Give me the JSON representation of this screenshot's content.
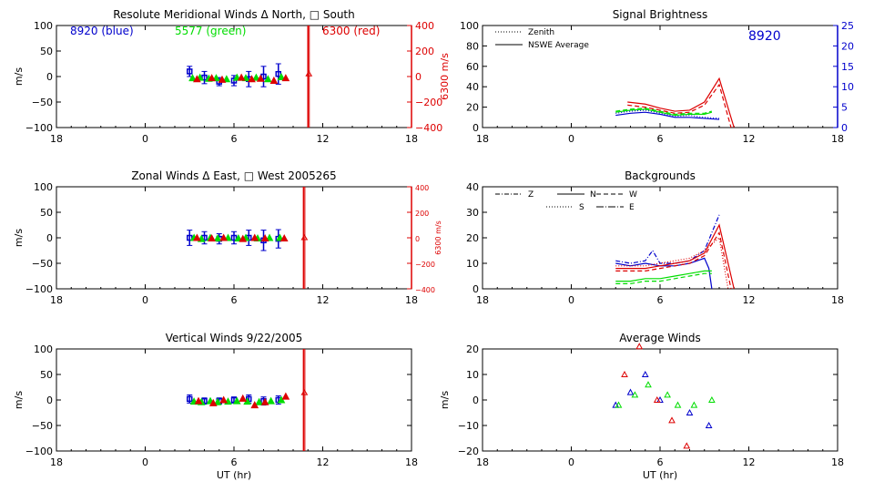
{
  "colors": {
    "blue": "#0000cc",
    "green": "#00dd00",
    "red": "#dd0000",
    "axis": "#000000"
  },
  "x_ticks": [
    "18",
    "0",
    "6",
    "12",
    "18"
  ],
  "xlabel_bottom": "UT (hr)",
  "chart_data": [
    {
      "id": "meridional",
      "type": "scatter",
      "title": "Resolute Meridional Winds Δ North, □ South",
      "ylabel": "m/s",
      "ylim": [
        -100,
        100
      ],
      "yticks": [
        "100",
        "50",
        "0",
        "−50",
        "−100"
      ],
      "xlim": [
        -6,
        18
      ],
      "right_axis": {
        "label": "6300 m/s",
        "ylim": [
          -400,
          400
        ],
        "ticks": [
          "400",
          "200",
          "0",
          "−200",
          "−400"
        ],
        "color": "#dd0000"
      },
      "annotations": [
        {
          "text": "8920 (blue)",
          "color": "#0000cc"
        },
        {
          "text": "5577 (green)",
          "color": "#00dd00"
        },
        {
          "text": "6300 (red)",
          "color": "#dd0000"
        }
      ],
      "series": [
        {
          "color": "#0000cc",
          "points": [
            [
              3.0,
              10,
              10
            ],
            [
              4.0,
              -2,
              12
            ],
            [
              5.0,
              -10,
              8
            ],
            [
              6.0,
              -8,
              10
            ],
            [
              7.0,
              -5,
              15
            ],
            [
              8.0,
              0,
              20
            ],
            [
              9.0,
              5,
              20
            ]
          ]
        },
        {
          "color": "#00dd00",
          "points": [
            [
              3.2,
              -3,
              0
            ],
            [
              3.7,
              -2,
              0
            ],
            [
              4.3,
              -4,
              0
            ],
            [
              4.8,
              -3,
              0
            ],
            [
              5.5,
              -5,
              0
            ],
            [
              6.2,
              -2,
              0
            ],
            [
              6.8,
              -3,
              0
            ],
            [
              7.5,
              -2,
              0
            ],
            [
              8.3,
              -5,
              0
            ],
            [
              9.2,
              -1,
              0
            ]
          ]
        },
        {
          "color": "#dd0000",
          "points": [
            [
              3.5,
              -5,
              0
            ],
            [
              4.5,
              -3,
              0
            ],
            [
              5.2,
              -6,
              0
            ],
            [
              6.5,
              -2,
              0
            ],
            [
              7.2,
              -5,
              0
            ],
            [
              7.8,
              -4,
              0
            ],
            [
              8.7,
              -8,
              0
            ],
            [
              9.5,
              -3,
              0
            ]
          ]
        }
      ],
      "spike": {
        "x": 11.0,
        "point": 5
      }
    },
    {
      "id": "zonal",
      "type": "scatter",
      "title": "Zonal Winds Δ East, □ West 2005265",
      "ylabel": "m/s",
      "ylim": [
        -100,
        100
      ],
      "yticks": [
        "100",
        "50",
        "0",
        "−50",
        "−100"
      ],
      "xlim": [
        -6,
        18
      ],
      "right_axis": {
        "label": "6300 m/s",
        "ylim": [
          -400,
          400
        ],
        "ticks": [
          "400",
          "200",
          "0",
          "−200",
          "−400"
        ],
        "color": "#dd0000"
      },
      "series": [
        {
          "color": "#0000cc",
          "points": [
            [
              3.0,
              0,
              15
            ],
            [
              4.0,
              0,
              12
            ],
            [
              5.0,
              -2,
              10
            ],
            [
              6.0,
              0,
              12
            ],
            [
              7.0,
              0,
              15
            ],
            [
              8.0,
              -5,
              20
            ],
            [
              9.0,
              -2,
              18
            ]
          ]
        },
        {
          "color": "#00dd00",
          "points": [
            [
              3.3,
              0,
              0
            ],
            [
              3.8,
              -2,
              0
            ],
            [
              4.4,
              0,
              0
            ],
            [
              4.9,
              -1,
              0
            ],
            [
              5.6,
              0,
              0
            ],
            [
              6.3,
              -1,
              0
            ],
            [
              6.8,
              0,
              0
            ],
            [
              7.6,
              -1,
              0
            ],
            [
              8.4,
              0,
              0
            ],
            [
              9.1,
              0,
              0
            ]
          ]
        },
        {
          "color": "#dd0000",
          "points": [
            [
              3.5,
              0,
              0
            ],
            [
              4.5,
              -1,
              0
            ],
            [
              5.3,
              0,
              0
            ],
            [
              6.6,
              -2,
              0
            ],
            [
              7.4,
              0,
              0
            ],
            [
              8.1,
              -1,
              0
            ],
            [
              9.4,
              -1,
              0
            ]
          ]
        }
      ],
      "spike": {
        "x": 10.7,
        "point": 0
      }
    },
    {
      "id": "vertical",
      "type": "scatter",
      "title": "Vertical Winds 9/22/2005",
      "ylabel": "m/s",
      "ylim": [
        -100,
        100
      ],
      "yticks": [
        "100",
        "50",
        "0",
        "−50",
        "−100"
      ],
      "xlim": [
        -6,
        18
      ],
      "series": [
        {
          "color": "#0000cc",
          "points": [
            [
              3.0,
              2,
              8
            ],
            [
              4.0,
              -2,
              6
            ],
            [
              5.0,
              -2,
              6
            ],
            [
              6.0,
              0,
              6
            ],
            [
              7.0,
              2,
              8
            ],
            [
              8.0,
              -2,
              8
            ],
            [
              9.0,
              0,
              8
            ]
          ]
        },
        {
          "color": "#00dd00",
          "points": [
            [
              3.3,
              -3,
              0
            ],
            [
              3.8,
              -4,
              0
            ],
            [
              4.4,
              -2,
              0
            ],
            [
              4.9,
              -4,
              0
            ],
            [
              5.6,
              -3,
              0
            ],
            [
              6.2,
              -2,
              0
            ],
            [
              6.9,
              -3,
              0
            ],
            [
              7.7,
              -4,
              0
            ],
            [
              8.5,
              -2,
              0
            ],
            [
              9.2,
              0,
              0
            ]
          ]
        },
        {
          "color": "#dd0000",
          "points": [
            [
              3.6,
              -2,
              0
            ],
            [
              4.6,
              -6,
              0
            ],
            [
              5.3,
              0,
              0
            ],
            [
              6.6,
              3,
              0
            ],
            [
              7.4,
              -10,
              0
            ],
            [
              8.1,
              -4,
              0
            ],
            [
              9.5,
              7,
              0
            ]
          ]
        }
      ],
      "spike": {
        "x": 10.7,
        "point": 14
      }
    },
    {
      "id": "brightness",
      "type": "line",
      "title": "Signal Brightness",
      "ylim": [
        0,
        100
      ],
      "yticks": [
        "100",
        "80",
        "60",
        "40",
        "20",
        "0"
      ],
      "xlim": [
        -6,
        18
      ],
      "right_axis": {
        "ylim": [
          0,
          25
        ],
        "ticks": [
          "25",
          "20",
          "15",
          "10",
          "5",
          "0"
        ],
        "color": "#0000cc"
      },
      "annotations": [
        {
          "text": "8920",
          "color": "#0000cc"
        }
      ],
      "legend": [
        {
          "label": "Zenith",
          "dash": "dotted"
        },
        {
          "label": "NSWE Average",
          "dash": "solid"
        }
      ],
      "series": [
        {
          "color": "#0000cc",
          "dash": "solid",
          "x": [
            3.0,
            4.0,
            5.0,
            6.0,
            7.0,
            8.0,
            9.0,
            10.0
          ],
          "y": [
            12,
            14,
            15,
            13,
            10,
            10,
            9,
            8
          ]
        },
        {
          "color": "#0000cc",
          "dash": "dotted",
          "x": [
            3.0,
            4.0,
            5.0,
            6.0,
            7.0,
            8.0,
            9.0,
            10.0
          ],
          "y": [
            14,
            16,
            17,
            14,
            11,
            12,
            10,
            9
          ]
        },
        {
          "color": "#00dd00",
          "dash": "solid",
          "x": [
            3.0,
            4.0,
            5.0,
            6.0,
            7.0,
            8.0,
            9.0,
            9.5
          ],
          "y": [
            15,
            17,
            18,
            15,
            12,
            13,
            13,
            15
          ]
        },
        {
          "color": "#00dd00",
          "dash": "dashed",
          "x": [
            3.0,
            4.0,
            5.0,
            6.0,
            7.0,
            8.0,
            9.0,
            9.5
          ],
          "y": [
            16,
            18,
            19,
            16,
            13,
            14,
            14,
            16
          ]
        },
        {
          "color": "#dd0000",
          "dash": "solid",
          "x": [
            3.8,
            5.0,
            6.0,
            7.0,
            8.0,
            9.0,
            10.0,
            11.0
          ],
          "y": [
            25,
            23,
            19,
            16,
            17,
            25,
            48,
            0
          ]
        },
        {
          "color": "#dd0000",
          "dash": "dashed",
          "x": [
            3.8,
            5.0,
            6.0,
            7.0,
            8.0,
            9.0,
            10.0,
            10.8
          ],
          "y": [
            22,
            20,
            17,
            14,
            15,
            22,
            42,
            0
          ]
        }
      ]
    },
    {
      "id": "backgrounds",
      "type": "line",
      "title": "Backgrounds",
      "ylim": [
        0,
        40
      ],
      "yticks": [
        "40",
        "30",
        "20",
        "10",
        "0"
      ],
      "xlim": [
        -6,
        18
      ],
      "legend": [
        {
          "label": "Z",
          "dash": "dashdot"
        },
        {
          "label": "N",
          "dash": "solid"
        },
        {
          "label": "W",
          "dash": "dashed"
        },
        {
          "label": "S",
          "dash": "dotted"
        },
        {
          "label": "E",
          "dash": "longdashdot"
        }
      ],
      "series": [
        {
          "color": "#0000cc",
          "dash": "solid",
          "x": [
            3.0,
            4.0,
            5.0,
            6.0,
            7.0,
            8.0,
            9.0,
            9.3,
            9.5
          ],
          "y": [
            10,
            9,
            10,
            9,
            9,
            10,
            12,
            8,
            0
          ]
        },
        {
          "color": "#0000cc",
          "dash": "dashdot",
          "x": [
            3.0,
            4.0,
            5.0,
            5.5,
            6.0,
            7.0,
            8.0,
            9.0,
            10.0
          ],
          "y": [
            11,
            10,
            11,
            15,
            10,
            10,
            11,
            15,
            29
          ]
        },
        {
          "color": "#00dd00",
          "dash": "solid",
          "x": [
            3.0,
            4.0,
            5.0,
            6.0,
            7.0,
            8.0,
            9.0,
            9.5
          ],
          "y": [
            3,
            3,
            4,
            4,
            5,
            6,
            7,
            7
          ]
        },
        {
          "color": "#00dd00",
          "dash": "dashed",
          "x": [
            3.0,
            4.0,
            5.0,
            6.0,
            7.0,
            8.0,
            9.0,
            9.5
          ],
          "y": [
            2,
            2,
            3,
            3,
            4,
            5,
            6,
            6
          ]
        },
        {
          "color": "#dd0000",
          "dash": "solid",
          "x": [
            3.0,
            4.0,
            5.0,
            6.0,
            7.0,
            8.0,
            9.0,
            10.0,
            11.0
          ],
          "y": [
            8,
            8,
            8,
            9,
            10,
            11,
            14,
            25,
            0
          ]
        },
        {
          "color": "#dd0000",
          "dash": "dashed",
          "x": [
            3.0,
            4.0,
            5.0,
            6.0,
            7.0,
            8.0,
            9.0,
            10.0,
            10.8
          ],
          "y": [
            7,
            7,
            7,
            8,
            9,
            10,
            13,
            22,
            0
          ]
        },
        {
          "color": "#dd0000",
          "dash": "dotted",
          "x": [
            3.0,
            4.0,
            5.0,
            6.0,
            7.0,
            8.0,
            9.0,
            10.0,
            10.6
          ],
          "y": [
            9,
            9,
            9,
            10,
            11,
            12,
            15,
            20,
            0
          ]
        }
      ]
    },
    {
      "id": "average",
      "type": "scatter",
      "title": "Average Winds",
      "ylabel": "m/s",
      "ylim": [
        -20,
        20
      ],
      "yticks": [
        "20",
        "10",
        "0",
        "−10",
        "−20"
      ],
      "xlim": [
        -6,
        18
      ],
      "series": [
        {
          "color": "#0000cc",
          "points": [
            [
              3.0,
              -2
            ],
            [
              4.0,
              3
            ],
            [
              5.0,
              10
            ],
            [
              6.0,
              0
            ],
            [
              8.0,
              -5
            ],
            [
              9.3,
              -10
            ]
          ]
        },
        {
          "color": "#00dd00",
          "points": [
            [
              3.2,
              -2
            ],
            [
              4.3,
              2
            ],
            [
              5.2,
              6
            ],
            [
              6.5,
              2
            ],
            [
              7.2,
              -2
            ],
            [
              8.3,
              -2
            ],
            [
              9.5,
              0
            ]
          ]
        },
        {
          "color": "#dd0000",
          "points": [
            [
              3.6,
              10
            ],
            [
              4.6,
              21
            ],
            [
              5.8,
              0
            ],
            [
              6.8,
              -8
            ],
            [
              7.8,
              -18
            ]
          ]
        }
      ]
    }
  ]
}
